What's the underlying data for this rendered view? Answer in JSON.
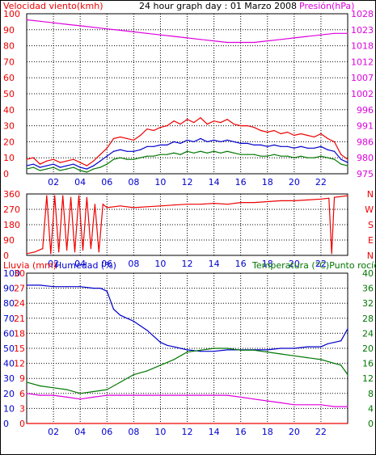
{
  "header": {
    "left_title": "Velocidad viento(kmh)",
    "center_title": "24 hour graph day : 01 Marzo 2008",
    "right_title": "Presión(hPa)"
  },
  "colors": {
    "red": "#ee0000",
    "blue": "#0000cc",
    "green": "#007700",
    "magenta": "#dd00dd",
    "grid": "#000000",
    "frame": "#000000"
  },
  "chart_data": [
    {
      "type": "line",
      "title": "24 hour graph day : 01 Marzo 2008",
      "x_ticks": [
        "02",
        "04",
        "06",
        "08",
        "10",
        "12",
        "14",
        "16",
        "18",
        "20",
        "22"
      ],
      "x_range": [
        0,
        24
      ],
      "ylabel_left": "Velocidad viento(kmh)",
      "ylabel_right": "Presión(hPa)",
      "left_ticks": [
        "0",
        "10",
        "20",
        "30",
        "40",
        "50",
        "60",
        "70",
        "80",
        "90",
        "100"
      ],
      "left_range": [
        0,
        100
      ],
      "right_ticks": [
        "975",
        "980",
        "986",
        "991",
        "996",
        "1002",
        "1007",
        "1012",
        "1018",
        "1023",
        "1028"
      ],
      "right_range": [
        975,
        1028
      ],
      "series": [
        {
          "role": "gust",
          "color": "#ee0000",
          "axis": "left",
          "x": [
            0,
            0.5,
            1,
            1.5,
            2,
            2.5,
            3,
            3.5,
            4,
            4.5,
            5,
            5.5,
            6,
            6.5,
            7,
            7.5,
            8,
            8.5,
            9,
            9.5,
            10,
            10.5,
            11,
            11.5,
            12,
            12.5,
            13,
            13.5,
            14,
            14.5,
            15,
            15.5,
            16,
            16.5,
            17,
            17.5,
            18,
            18.5,
            19,
            19.5,
            20,
            20.5,
            21,
            21.5,
            22,
            22.5,
            23,
            23.5,
            24
          ],
          "values": [
            9,
            10,
            6,
            8,
            9,
            7,
            8,
            9,
            7,
            5,
            8,
            12,
            16,
            22,
            23,
            22,
            21,
            24,
            28,
            27,
            29,
            30,
            33,
            31,
            34,
            32,
            35,
            31,
            33,
            32,
            34,
            31,
            30,
            30,
            29,
            27,
            26,
            27,
            25,
            26,
            24,
            25,
            24,
            23,
            25,
            22,
            20,
            12,
            9
          ]
        },
        {
          "role": "speed",
          "color": "#0000cc",
          "axis": "left",
          "x": [
            0,
            0.5,
            1,
            1.5,
            2,
            2.5,
            3,
            3.5,
            4,
            4.5,
            5,
            5.5,
            6,
            6.5,
            7,
            7.5,
            8,
            8.5,
            9,
            9.5,
            10,
            10.5,
            11,
            11.5,
            12,
            12.5,
            13,
            13.5,
            14,
            14.5,
            15,
            15.5,
            16,
            16.5,
            17,
            17.5,
            18,
            18.5,
            19,
            19.5,
            20,
            20.5,
            21,
            21.5,
            22,
            22.5,
            23,
            23.5,
            24
          ],
          "values": [
            5,
            6,
            4,
            5,
            6,
            4,
            5,
            6,
            4,
            3,
            5,
            8,
            11,
            14,
            15,
            14,
            14,
            15,
            17,
            17,
            18,
            18,
            20,
            19,
            21,
            20,
            22,
            20,
            21,
            20,
            21,
            20,
            19,
            19,
            18,
            18,
            17,
            18,
            17,
            17,
            16,
            17,
            16,
            16,
            17,
            15,
            14,
            9,
            7
          ]
        },
        {
          "role": "low",
          "color": "#007700",
          "axis": "left",
          "x": [
            0,
            0.5,
            1,
            1.5,
            2,
            2.5,
            3,
            3.5,
            4,
            4.5,
            5,
            5.5,
            6,
            6.5,
            7,
            7.5,
            8,
            8.5,
            9,
            9.5,
            10,
            10.5,
            11,
            11.5,
            12,
            12.5,
            13,
            13.5,
            14,
            14.5,
            15,
            15.5,
            16,
            16.5,
            17,
            17.5,
            18,
            18.5,
            19,
            19.5,
            20,
            20.5,
            21,
            21.5,
            22,
            22.5,
            23,
            23.5,
            24
          ],
          "values": [
            3,
            4,
            2,
            3,
            4,
            2,
            3,
            4,
            2,
            1,
            3,
            4,
            6,
            9,
            10,
            9,
            9,
            10,
            11,
            11,
            12,
            12,
            13,
            12,
            14,
            13,
            14,
            13,
            14,
            13,
            14,
            13,
            12,
            12,
            12,
            11,
            11,
            12,
            11,
            11,
            10,
            11,
            10,
            10,
            11,
            10,
            9,
            6,
            5
          ]
        },
        {
          "role": "pressure",
          "color": "#dd00dd",
          "axis": "right",
          "x": [
            0,
            1,
            2,
            3,
            4,
            5,
            6,
            7,
            8,
            9,
            10,
            11,
            12,
            13,
            14,
            15,
            16,
            17,
            18,
            19,
            20,
            21,
            22,
            23,
            24
          ],
          "values": [
            1026,
            1025.5,
            1025,
            1024.5,
            1024,
            1023.5,
            1023,
            1022.5,
            1022,
            1021.5,
            1021,
            1020.5,
            1020,
            1019.5,
            1019,
            1018.5,
            1018.5,
            1018.5,
            1019,
            1019.5,
            1020,
            1020.5,
            1021,
            1021.5,
            1021.5
          ]
        }
      ]
    },
    {
      "type": "line",
      "x_ticks": [
        "02",
        "04",
        "06",
        "08",
        "10",
        "12",
        "14",
        "16",
        "18",
        "20",
        "22"
      ],
      "x_range": [
        0,
        24
      ],
      "left_ticks": [
        "0",
        "90",
        "180",
        "270",
        "360"
      ],
      "left_range": [
        0,
        360
      ],
      "right_ticks": [
        "N",
        "E",
        "S",
        "W",
        "N"
      ],
      "series": [
        {
          "role": "direction",
          "color": "#ee0000",
          "axis": "left",
          "x": [
            0,
            0.3,
            0.6,
            0.9,
            1.2,
            1.5,
            1.8,
            2.1,
            2.4,
            2.7,
            3.0,
            3.3,
            3.6,
            3.9,
            4.2,
            4.5,
            4.8,
            5.1,
            5.4,
            5.7,
            6,
            7,
            8,
            9,
            10,
            11,
            12,
            13,
            14,
            15,
            16,
            17,
            18,
            19,
            20,
            21,
            22,
            22.6,
            22.8,
            23,
            23.5,
            24
          ],
          "values": [
            10,
            15,
            20,
            30,
            40,
            350,
            10,
            350,
            20,
            350,
            30,
            340,
            20,
            350,
            30,
            340,
            40,
            300,
            20,
            300,
            280,
            290,
            280,
            285,
            290,
            295,
            300,
            300,
            305,
            300,
            310,
            310,
            315,
            320,
            320,
            325,
            330,
            335,
            10,
            340,
            345,
            350
          ]
        }
      ]
    },
    {
      "type": "line",
      "x_ticks": [
        "02",
        "04",
        "06",
        "08",
        "10",
        "12",
        "14",
        "16",
        "18",
        "20",
        "22"
      ],
      "x_range": [
        0,
        24
      ],
      "ylabel_left_1": "Lluvia (mm)",
      "ylabel_left_2": "Humedad (%)",
      "ylabel_right": "Temperatura (°C)Punto rocío",
      "rain_ticks": [
        "0",
        "3",
        "6",
        "9",
        "12",
        "15",
        "18",
        "21",
        "24",
        "27",
        "30"
      ],
      "humidity_ticks": [
        "0",
        "10",
        "20",
        "30",
        "40",
        "50",
        "60",
        "70",
        "80",
        "90",
        "100"
      ],
      "temp_ticks": [
        "0",
        "4",
        "8",
        "12",
        "16",
        "20",
        "24",
        "28",
        "32",
        "36",
        "40"
      ],
      "series": [
        {
          "role": "humidity",
          "color": "#0000cc",
          "axis": "humidity",
          "x": [
            0,
            1,
            2,
            3,
            4,
            5,
            5.5,
            6,
            6.5,
            7,
            7.5,
            8,
            8.5,
            9,
            9.5,
            10,
            10.5,
            11,
            11.5,
            12,
            13,
            14,
            15,
            16,
            17,
            18,
            19,
            20,
            21,
            22,
            22.5,
            23,
            23.5,
            24
          ],
          "values": [
            92,
            92,
            91,
            91,
            91,
            90,
            90,
            88,
            76,
            72,
            70,
            68,
            65,
            62,
            58,
            54,
            52,
            51,
            50,
            49,
            48,
            48,
            49,
            49,
            49,
            49,
            50,
            50,
            51,
            51,
            53,
            54,
            55,
            63
          ]
        },
        {
          "role": "temperature",
          "color": "#007700",
          "axis": "temp",
          "x": [
            0,
            1,
            2,
            3,
            4,
            5,
            6,
            7,
            8,
            9,
            10,
            11,
            12,
            13,
            14,
            15,
            16,
            17,
            18,
            19,
            20,
            21,
            22,
            23,
            23.5,
            24
          ],
          "values": [
            11,
            10,
            9.5,
            9,
            8,
            8.5,
            9,
            11,
            13,
            14,
            15.5,
            17,
            19,
            19.5,
            20,
            20,
            19.5,
            19.5,
            19,
            18.5,
            18,
            17.5,
            17,
            16,
            15.5,
            13
          ]
        },
        {
          "role": "dewpoint",
          "color": "#dd00dd",
          "axis": "temp",
          "x": [
            0,
            1,
            2,
            3,
            4,
            5,
            6,
            7,
            8,
            9,
            10,
            11,
            12,
            13,
            14,
            15,
            16,
            17,
            18,
            19,
            20,
            21,
            22,
            23,
            24
          ],
          "values": [
            8,
            7.5,
            7.5,
            7,
            6.5,
            7,
            7.5,
            7.5,
            7.5,
            7.5,
            7.5,
            7.5,
            7.5,
            7.5,
            7.5,
            7.5,
            7,
            6.5,
            6,
            5.5,
            5,
            5,
            5,
            4.5,
            4.5
          ]
        },
        {
          "role": "rain",
          "color": "#ee0000",
          "axis": "rain",
          "x": [
            0,
            24
          ],
          "values": [
            0,
            0
          ]
        }
      ]
    }
  ]
}
